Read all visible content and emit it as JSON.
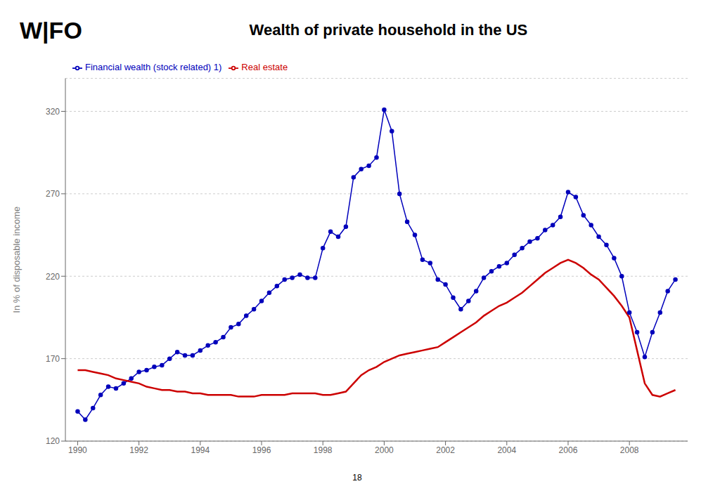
{
  "chart_data": {
    "type": "line",
    "title": "Wealth of private household in the US",
    "y_label": "In % of disposable income",
    "annotations": [
      "W",
      "|",
      "FO",
      "18"
    ],
    "xlim": [
      1989.6,
      2009.9
    ],
    "ylim": [
      120,
      340
    ],
    "xticks": [
      1990,
      1992,
      1994,
      1996,
      1998,
      2000,
      2002,
      2004,
      2006,
      2008
    ],
    "yticks": [
      120,
      170,
      220,
      270,
      320
    ],
    "grid": true,
    "legend": "upper left",
    "x": [
      1990.0,
      1990.25,
      1990.5,
      1990.75,
      1991.0,
      1991.25,
      1991.5,
      1991.75,
      1992.0,
      1992.25,
      1992.5,
      1992.75,
      1993.0,
      1993.25,
      1993.5,
      1993.75,
      1994.0,
      1994.25,
      1994.5,
      1994.75,
      1995.0,
      1995.25,
      1995.5,
      1995.75,
      1996.0,
      1996.25,
      1996.5,
      1996.75,
      1997.0,
      1997.25,
      1997.5,
      1997.75,
      1998.0,
      1998.25,
      1998.5,
      1998.75,
      1999.0,
      1999.25,
      1999.5,
      1999.75,
      2000.0,
      2000.25,
      2000.5,
      2000.75,
      2001.0,
      2001.25,
      2001.5,
      2001.75,
      2002.0,
      2002.25,
      2002.5,
      2002.75,
      2003.0,
      2003.25,
      2003.5,
      2003.75,
      2004.0,
      2004.25,
      2004.5,
      2004.75,
      2005.0,
      2005.25,
      2005.5,
      2005.75,
      2006.0,
      2006.25,
      2006.5,
      2006.75,
      2007.0,
      2007.25,
      2007.5,
      2007.75,
      2008.0,
      2008.25,
      2008.5,
      2008.75,
      2009.0,
      2009.25,
      2009.5
    ],
    "series": [
      {
        "name": "Financial wealth (stock related) 1)",
        "color": "#0000bb",
        "marker": "circle",
        "values": [
          138,
          133,
          140,
          148,
          153,
          152,
          155,
          158,
          162,
          163,
          165,
          166,
          170,
          174,
          172,
          172,
          175,
          178,
          180,
          183,
          189,
          191,
          196,
          200,
          205,
          210,
          214,
          218,
          219,
          221,
          219,
          219,
          237,
          247,
          244,
          250,
          280,
          285,
          287,
          292,
          321,
          308,
          270,
          253,
          245,
          230,
          228,
          218,
          215,
          207,
          200,
          205,
          211,
          219,
          223,
          226,
          228,
          233,
          237,
          241,
          243,
          248,
          251,
          256,
          271,
          268,
          257,
          251,
          244,
          239,
          231,
          220,
          198,
          186,
          171,
          186,
          198,
          211,
          218
        ]
      },
      {
        "name": "Real estate",
        "color": "#cc0000",
        "values": [
          163,
          163,
          162,
          161,
          160,
          158,
          157,
          156,
          155,
          153,
          152,
          151,
          151,
          150,
          150,
          149,
          149,
          148,
          148,
          148,
          148,
          147,
          147,
          147,
          148,
          148,
          148,
          148,
          149,
          149,
          149,
          149,
          148,
          148,
          149,
          150,
          155,
          160,
          163,
          165,
          168,
          170,
          172,
          173,
          174,
          175,
          176,
          177,
          180,
          183,
          186,
          189,
          192,
          196,
          199,
          202,
          204,
          207,
          210,
          214,
          218,
          222,
          225,
          228,
          230,
          228,
          225,
          221,
          218,
          213,
          208,
          202,
          195,
          175,
          155,
          148,
          147,
          149,
          151
        ]
      }
    ]
  }
}
